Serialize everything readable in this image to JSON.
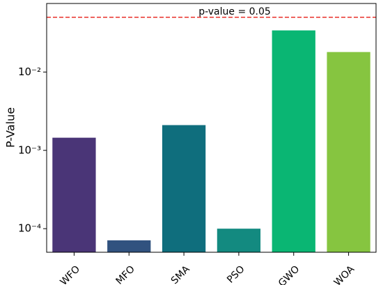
{
  "chart_data": {
    "type": "bar",
    "y_label": "P-Value",
    "categories": [
      "WFO",
      "MFO",
      "SMA",
      "PSO",
      "GWO",
      "WOA"
    ],
    "values": [
      0.00145,
      7.1e-05,
      0.0021,
      0.0001,
      0.034,
      0.018
    ],
    "colors": [
      "#4a3577",
      "#31527f",
      "#0f6e7d",
      "#138a80",
      "#0ab673",
      "#86c540"
    ],
    "log_scale": true,
    "ylim": [
      5e-05,
      0.075
    ],
    "yticks": [
      {
        "value": 0.0001,
        "label": "10⁻⁴"
      },
      {
        "value": 0.001,
        "label": "10⁻³"
      },
      {
        "value": 0.01,
        "label": "10⁻²"
      }
    ],
    "reference_line": {
      "value": 0.05,
      "label": "p-value = 0.05",
      "color": "#e8302a"
    }
  }
}
